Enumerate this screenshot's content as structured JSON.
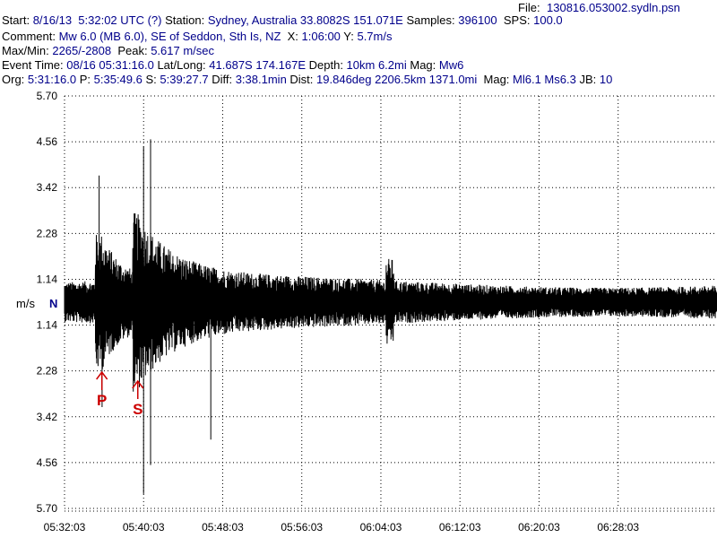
{
  "header": {
    "file_label": "File:",
    "file_value": "130816.053002.sydln.psn",
    "line1": [
      {
        "t": "Start: ",
        "c": "k"
      },
      {
        "t": "8/16/13  5:32:02 UTC (?)",
        "c": "b"
      },
      {
        "t": " Station: ",
        "c": "k"
      },
      {
        "t": "Sydney, Australia 33.8082S 151.071E",
        "c": "b"
      },
      {
        "t": " Samples: ",
        "c": "k"
      },
      {
        "t": "396100",
        "c": "b"
      },
      {
        "t": "  SPS: ",
        "c": "k"
      },
      {
        "t": "100.0",
        "c": "b"
      }
    ],
    "line2": [
      {
        "t": "Comment: ",
        "c": "k"
      },
      {
        "t": "Mw 6.0 (MB 6.0), SE of Seddon, Sth Is, NZ",
        "c": "b"
      },
      {
        "t": "  X: ",
        "c": "k"
      },
      {
        "t": "1:06:00",
        "c": "b"
      },
      {
        "t": " Y: ",
        "c": "k"
      },
      {
        "t": "5.7m/s",
        "c": "b"
      }
    ],
    "line3": [
      {
        "t": "Max/Min: ",
        "c": "k"
      },
      {
        "t": "2265/-2808",
        "c": "b"
      },
      {
        "t": "  Peak: ",
        "c": "k"
      },
      {
        "t": "5.617 m/sec",
        "c": "b"
      }
    ],
    "line4": [
      {
        "t": "Event Time: ",
        "c": "k"
      },
      {
        "t": "08/16 05:31:16.0",
        "c": "b"
      },
      {
        "t": " Lat/Long: ",
        "c": "k"
      },
      {
        "t": "41.687S 174.167E",
        "c": "b"
      },
      {
        "t": " Depth: ",
        "c": "k"
      },
      {
        "t": "10km 6.2mi",
        "c": "b"
      },
      {
        "t": " Mag: ",
        "c": "k"
      },
      {
        "t": "Mw6",
        "c": "b"
      }
    ],
    "line5": [
      {
        "t": "Org: ",
        "c": "k"
      },
      {
        "t": "5:31:16.0",
        "c": "b"
      },
      {
        "t": " P: ",
        "c": "k"
      },
      {
        "t": "5:35:49.6",
        "c": "b"
      },
      {
        "t": " S: ",
        "c": "k"
      },
      {
        "t": "5:39:27.7",
        "c": "b"
      },
      {
        "t": " Diff: ",
        "c": "k"
      },
      {
        "t": "3:38.1min",
        "c": "b"
      },
      {
        "t": " Dist: ",
        "c": "k"
      },
      {
        "t": "19.846deg 2206.5km 1371.0mi",
        "c": "b"
      },
      {
        "t": "  Mag: ",
        "c": "k"
      },
      {
        "t": "Ml6.1 Ms6.3",
        "c": "b"
      },
      {
        "t": " JB: ",
        "c": "k"
      },
      {
        "t": "10",
        "c": "b"
      }
    ]
  },
  "colors": {
    "k": "#000000",
    "b": "#00008b",
    "red": "#cc0000"
  },
  "chart_data": {
    "type": "line",
    "ylabel": "m/s",
    "channel": "N",
    "y_tick_labels": [
      "5.70",
      "4.56",
      "3.42",
      "2.28",
      "1.14",
      "1.14",
      "2.28",
      "3.42",
      "4.56",
      "5.70"
    ],
    "ylim": [
      -5.7,
      5.7
    ],
    "x_tick_labels": [
      "05:32:03",
      "05:40:03",
      "05:48:03",
      "05:56:03",
      "06:04:03",
      "06:12:03",
      "06:20:03",
      "06:28:03"
    ],
    "x_start_seconds": 0,
    "x_end_seconds": 3960,
    "x_tick_seconds": [
      0,
      480,
      960,
      1440,
      1920,
      2400,
      2880,
      3360
    ],
    "grid": true,
    "grid_style": "dotted",
    "phase_markers": [
      {
        "label": "P",
        "time": "5:35:49.6"
      },
      {
        "label": "S",
        "time": "5:39:27.7"
      }
    ],
    "trace_peaks": [
      {
        "time": "5:35:33",
        "value": 3.5
      },
      {
        "time": "5:35:51",
        "value": -2.9
      },
      {
        "time": "5:40:03",
        "value": 4.3
      },
      {
        "time": "5:40:03",
        "value": -5.3
      },
      {
        "time": "5:40:45",
        "value": 4.5
      },
      {
        "time": "5:40:45",
        "value": -4.5
      },
      {
        "time": "5:46:51",
        "value": -3.8
      }
    ]
  }
}
